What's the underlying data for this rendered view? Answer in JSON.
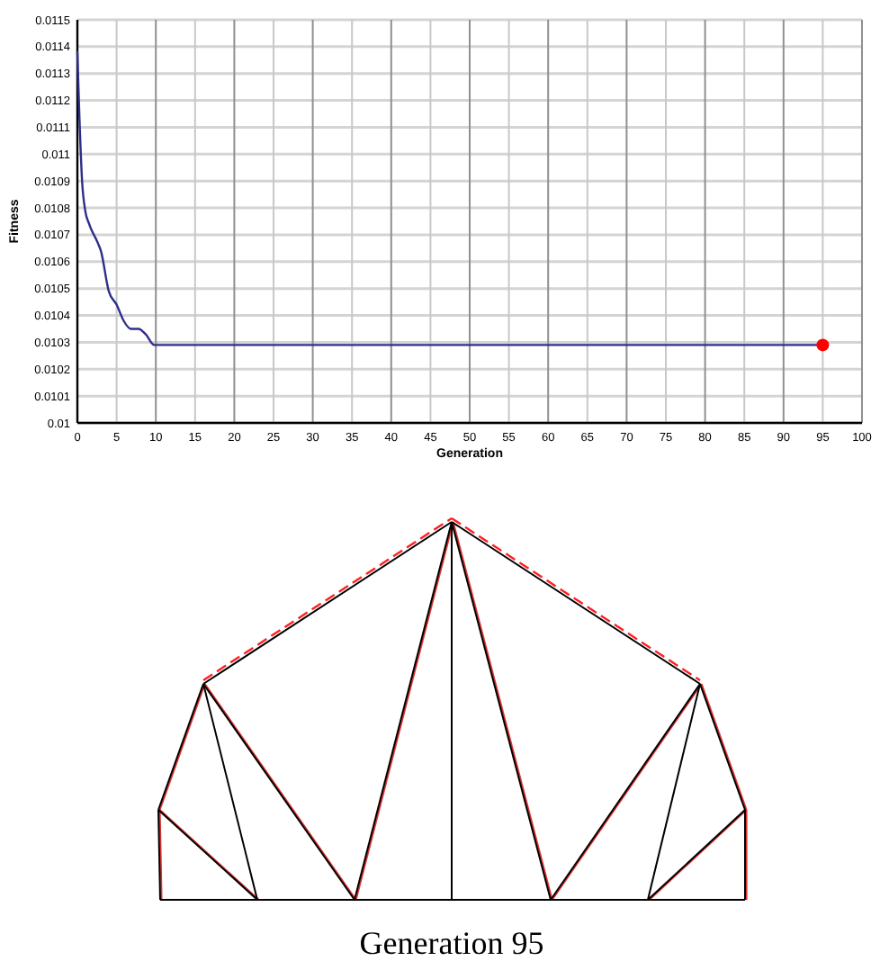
{
  "chart_data": {
    "type": "line",
    "xlabel": "Generation",
    "ylabel": "Fitness",
    "xlim": [
      0,
      100
    ],
    "xticks": [
      0,
      5,
      10,
      15,
      20,
      25,
      30,
      35,
      40,
      45,
      50,
      55,
      60,
      65,
      70,
      75,
      80,
      85,
      90,
      95,
      100
    ],
    "ylim": [
      0.01,
      0.0115
    ],
    "yticks": [
      0.01,
      0.0101,
      0.0102,
      0.0103,
      0.0104,
      0.0105,
      0.0106,
      0.0107,
      0.0108,
      0.0109,
      0.011,
      0.0111,
      0.0112,
      0.0113,
      0.0114,
      0.0115
    ],
    "grid": true,
    "series": [
      {
        "color": "#2e2e8c",
        "x": [
          0,
          0.2,
          0.6,
          1,
          1.5,
          2.6,
          3,
          4,
          5,
          5.9,
          6.8,
          7.8,
          8.7,
          9.8,
          10.3,
          13,
          95
        ],
        "values": [
          0.01138,
          0.01119,
          0.0109,
          0.01079,
          0.01074,
          0.01067,
          0.01064,
          0.01049,
          0.01044,
          0.01038,
          0.01035,
          0.01035,
          0.01033,
          0.01029,
          0.01029,
          0.01029,
          0.01029
        ]
      },
      {
        "type": "scatter",
        "color": "#ff0000",
        "marker": "circle",
        "x": [
          95
        ],
        "values": [
          0.01029
        ]
      }
    ],
    "annotations": [
      "Generation 95"
    ]
  }
}
